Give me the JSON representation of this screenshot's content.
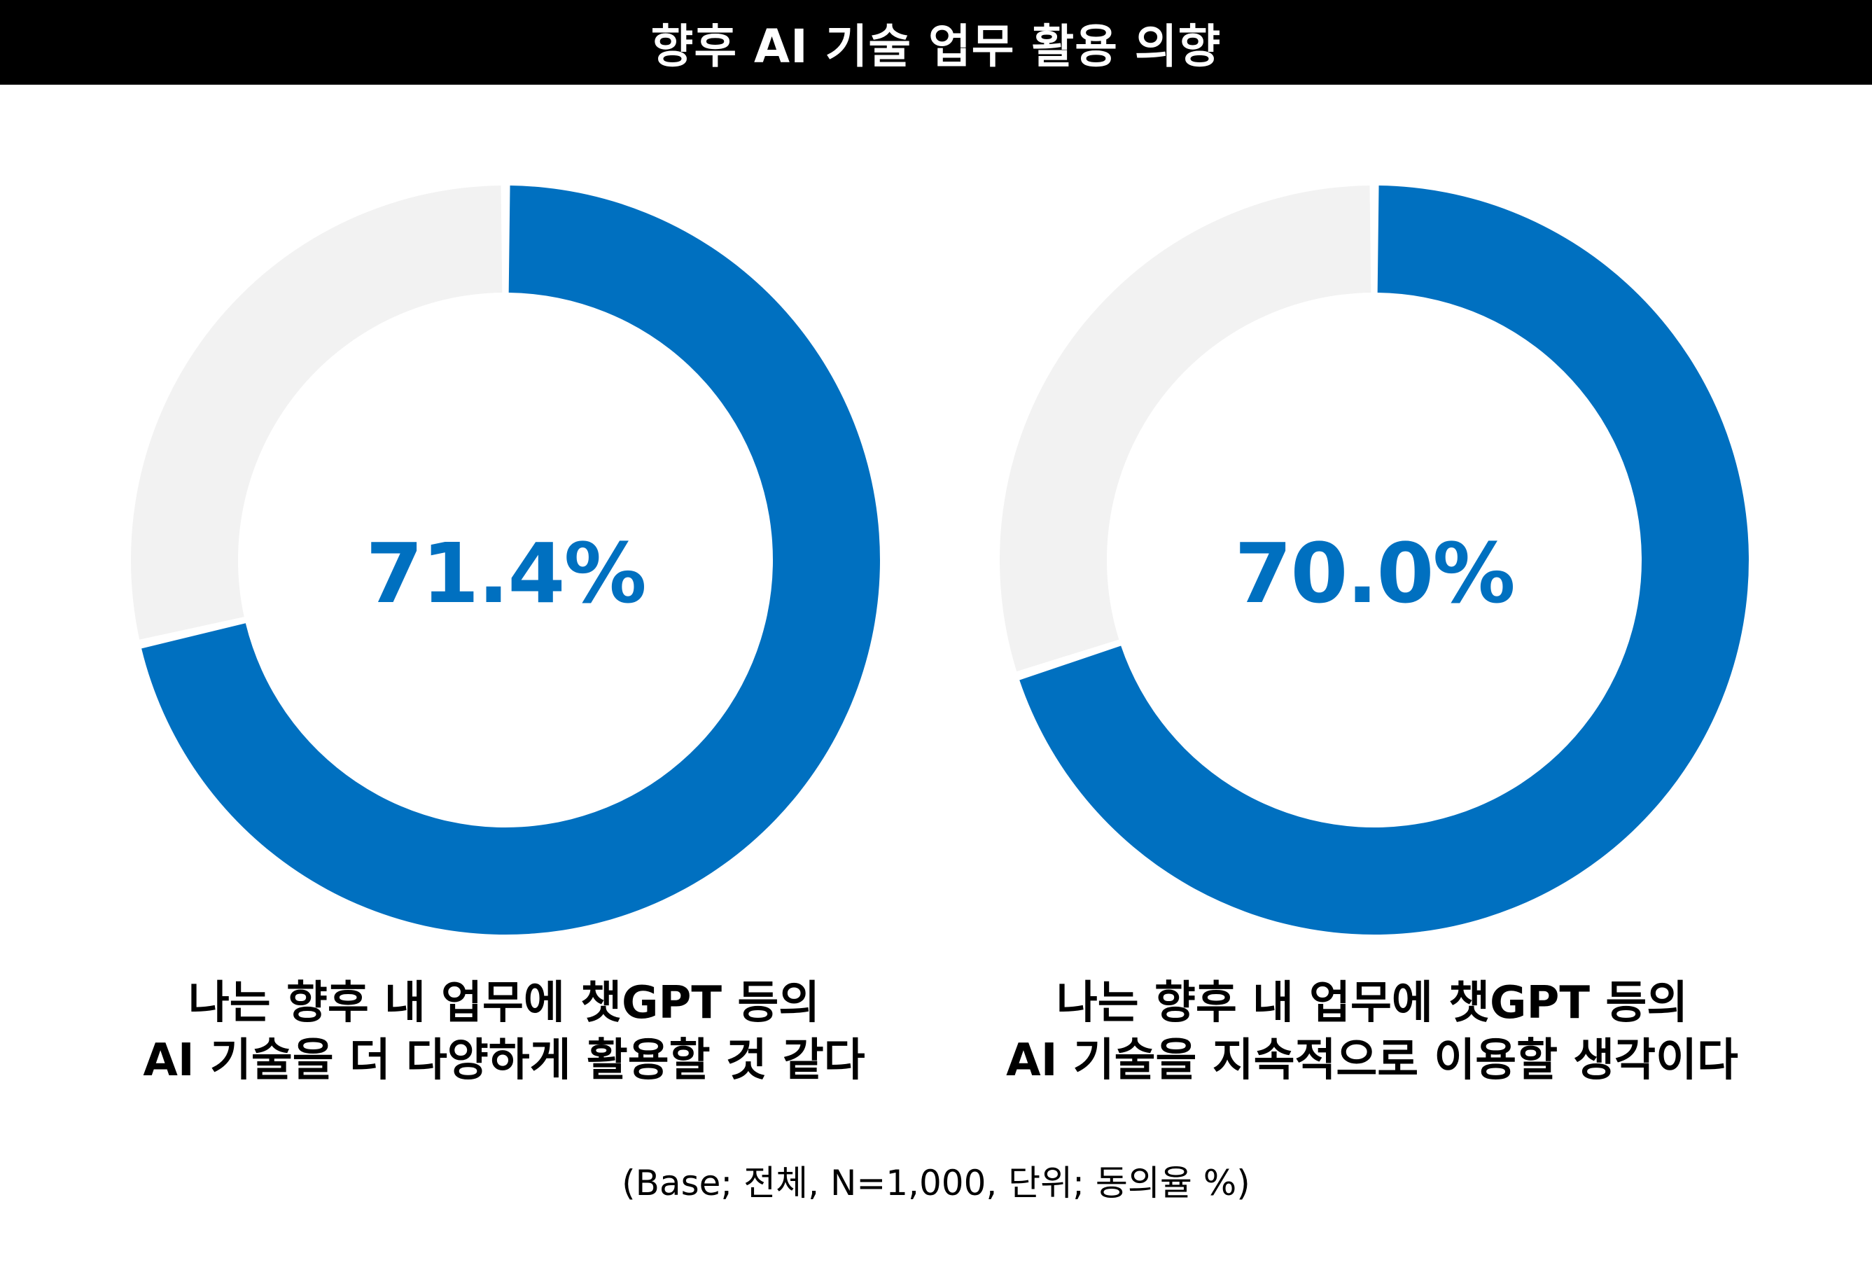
{
  "title": "향후 AI 기술 업무 활용 의향",
  "colors": {
    "accent": "#0070C0",
    "remainder": "#F2F2F2",
    "title_bg": "#000000"
  },
  "chart_data": [
    {
      "type": "pie",
      "variant": "donut",
      "value": 71.4,
      "value_label": "71.4%",
      "caption_lines": [
        "나는 향후 내 업무에 챗GPT 등의",
        "AI 기술을 더 다양하게 활용할 것 같다"
      ]
    },
    {
      "type": "pie",
      "variant": "donut",
      "value": 70.0,
      "value_label": "70.0%",
      "caption_lines": [
        "나는 향후 내 업무에 챗GPT 등의",
        "AI 기술을 지속적으로 이용할 생각이다"
      ]
    }
  ],
  "footnote": "(Base; 전체, N=1,000, 단위; 동의율 %)"
}
